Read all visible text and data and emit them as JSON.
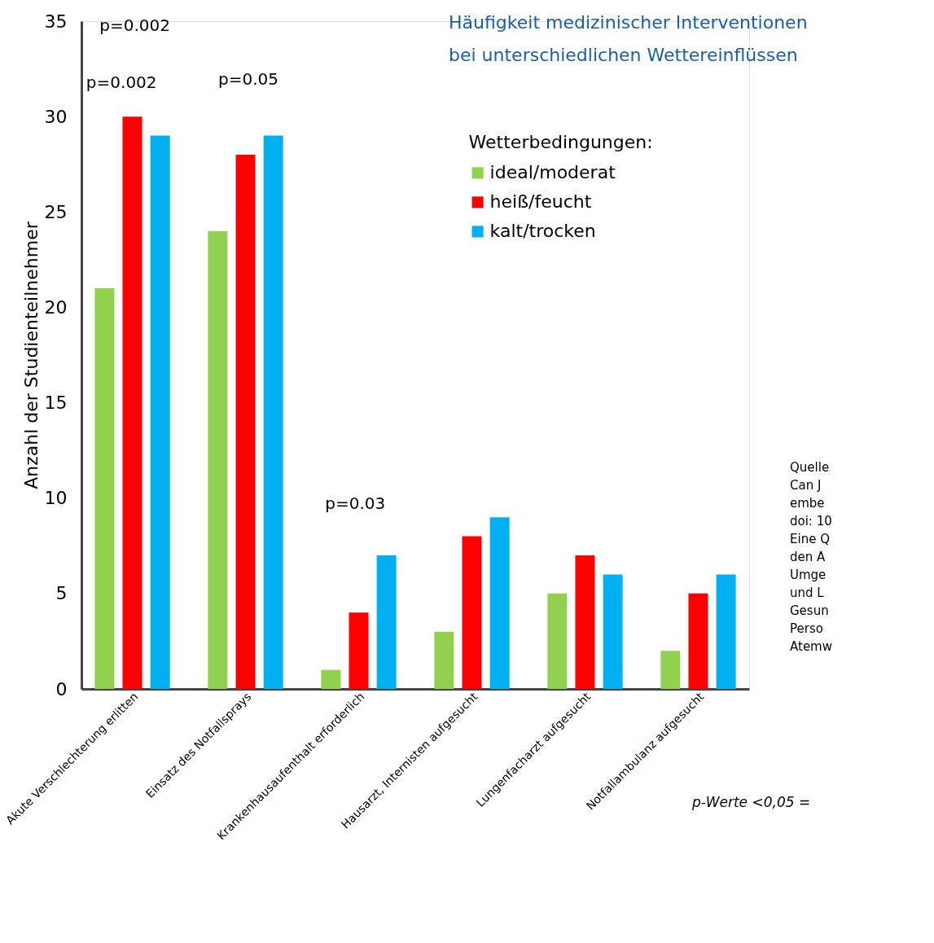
{
  "chart_data": {
    "type": "bar",
    "title": "Häufigkeit medizinischer Interventionen\nbei unterschiedlichen Wettereinflüssen",
    "ylabel": "Anzahl der Studienteilnehmer",
    "legend_title": "Wetterbedingungen:",
    "legend": "top right",
    "grid": false,
    "categories": [
      "Akute Verschlechterung erlitten",
      "Einsatz des Notfallsprays",
      "Krankenhausaufenthalt erforderlich",
      "Hausarzt, Internisten aufgesucht",
      "Lungenfacharzt aufgesucht",
      "Notfallambulanz aufgesucht"
    ],
    "series": [
      {
        "name": "ideal/moderat",
        "color": "#92d050",
        "values": [
          21,
          24,
          1,
          3,
          5,
          2
        ]
      },
      {
        "name": "heiß/feucht",
        "color": "#ff0000",
        "values": [
          30,
          28,
          4,
          8,
          7,
          5
        ]
      },
      {
        "name": "kalt/trocken",
        "color": "#00b0f0",
        "values": [
          29,
          29,
          7,
          9,
          6,
          6
        ]
      }
    ],
    "ylim": [
      0,
      35
    ],
    "yticks": [
      0,
      5,
      10,
      15,
      20,
      25,
      30,
      35
    ],
    "annotations": [
      "p=0.002",
      "p=0.002",
      "p=0.05",
      "p=0.03",
      "Quelle\nCan J\nembe\ndoi: 10\nEine Q\nden A\nUmge\nund L\nGesun\nPerso\nAtemw",
      "p-Werte <0,05 ="
    ]
  }
}
